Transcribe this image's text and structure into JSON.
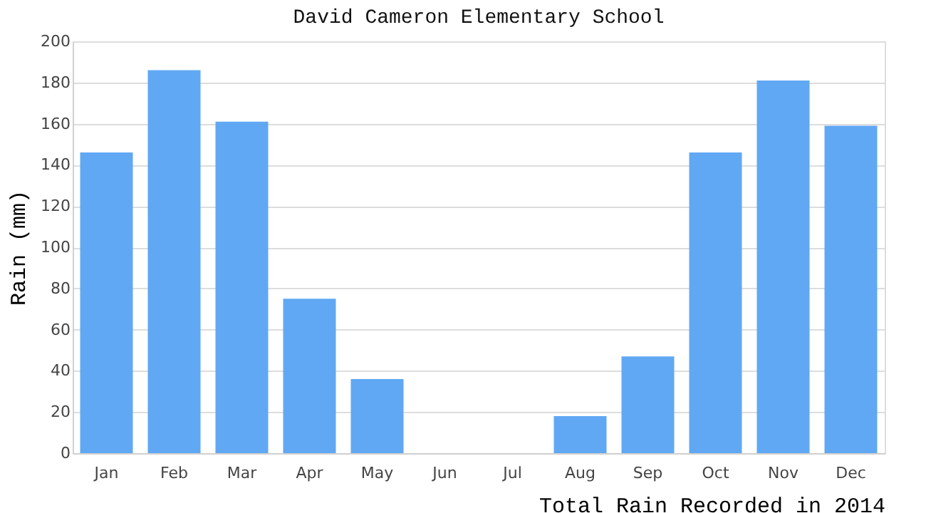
{
  "chart_data": {
    "type": "bar",
    "title": "David Cameron Elementary School",
    "xlabel": "Total Rain Recorded in 2014",
    "ylabel": "Rain (mm)",
    "categories": [
      "Jan",
      "Feb",
      "Mar",
      "Apr",
      "May",
      "Jun",
      "Jul",
      "Aug",
      "Sep",
      "Oct",
      "Nov",
      "Dec"
    ],
    "values": [
      146,
      186,
      161,
      75,
      36,
      0,
      0,
      18,
      47,
      146,
      181,
      159
    ],
    "color": "#60a8f4",
    "ylim": [
      0,
      200
    ],
    "yticks": [
      0,
      20,
      40,
      60,
      80,
      100,
      120,
      140,
      160,
      180,
      200
    ],
    "grid": "y"
  }
}
